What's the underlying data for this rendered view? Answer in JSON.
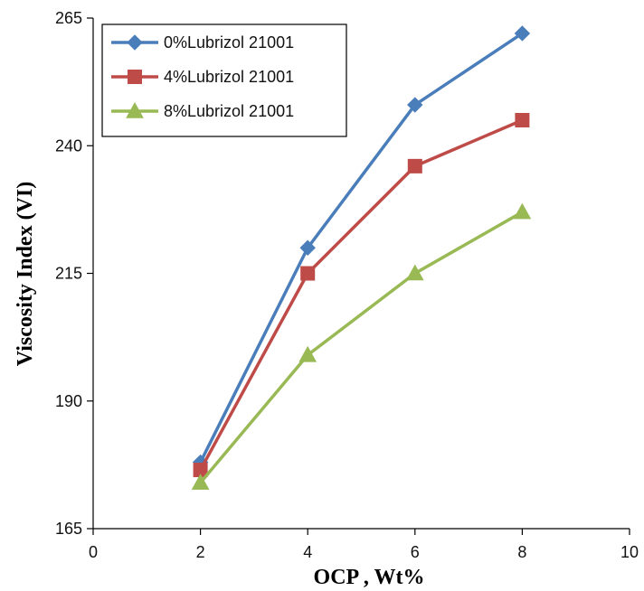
{
  "chart_data": {
    "type": "line",
    "xlabel": "OCP , Wt%",
    "ylabel": "Viscosity Index (VI)",
    "xlim": [
      0,
      10
    ],
    "ylim": [
      165,
      265
    ],
    "xticks": [
      "0",
      "2",
      "4",
      "6",
      "8",
      "10"
    ],
    "yticks": [
      "165",
      "190",
      "215",
      "240",
      "265"
    ],
    "x": [
      2,
      4,
      6,
      8
    ],
    "legend_position": "top-left",
    "grid": false,
    "series": [
      {
        "name": "0%Lubrizol  21001",
        "marker": "diamond",
        "color": "#4A7EBB",
        "values": [
          178,
          220,
          248,
          262
        ]
      },
      {
        "name": "4%Lubrizol  21001",
        "marker": "square",
        "color": "#BE4B48",
        "values": [
          176.5,
          215,
          236,
          245
        ]
      },
      {
        "name": "8%Lubrizol  21001",
        "marker": "triangle",
        "color": "#98B954",
        "values": [
          174,
          199,
          215,
          227
        ]
      }
    ]
  }
}
